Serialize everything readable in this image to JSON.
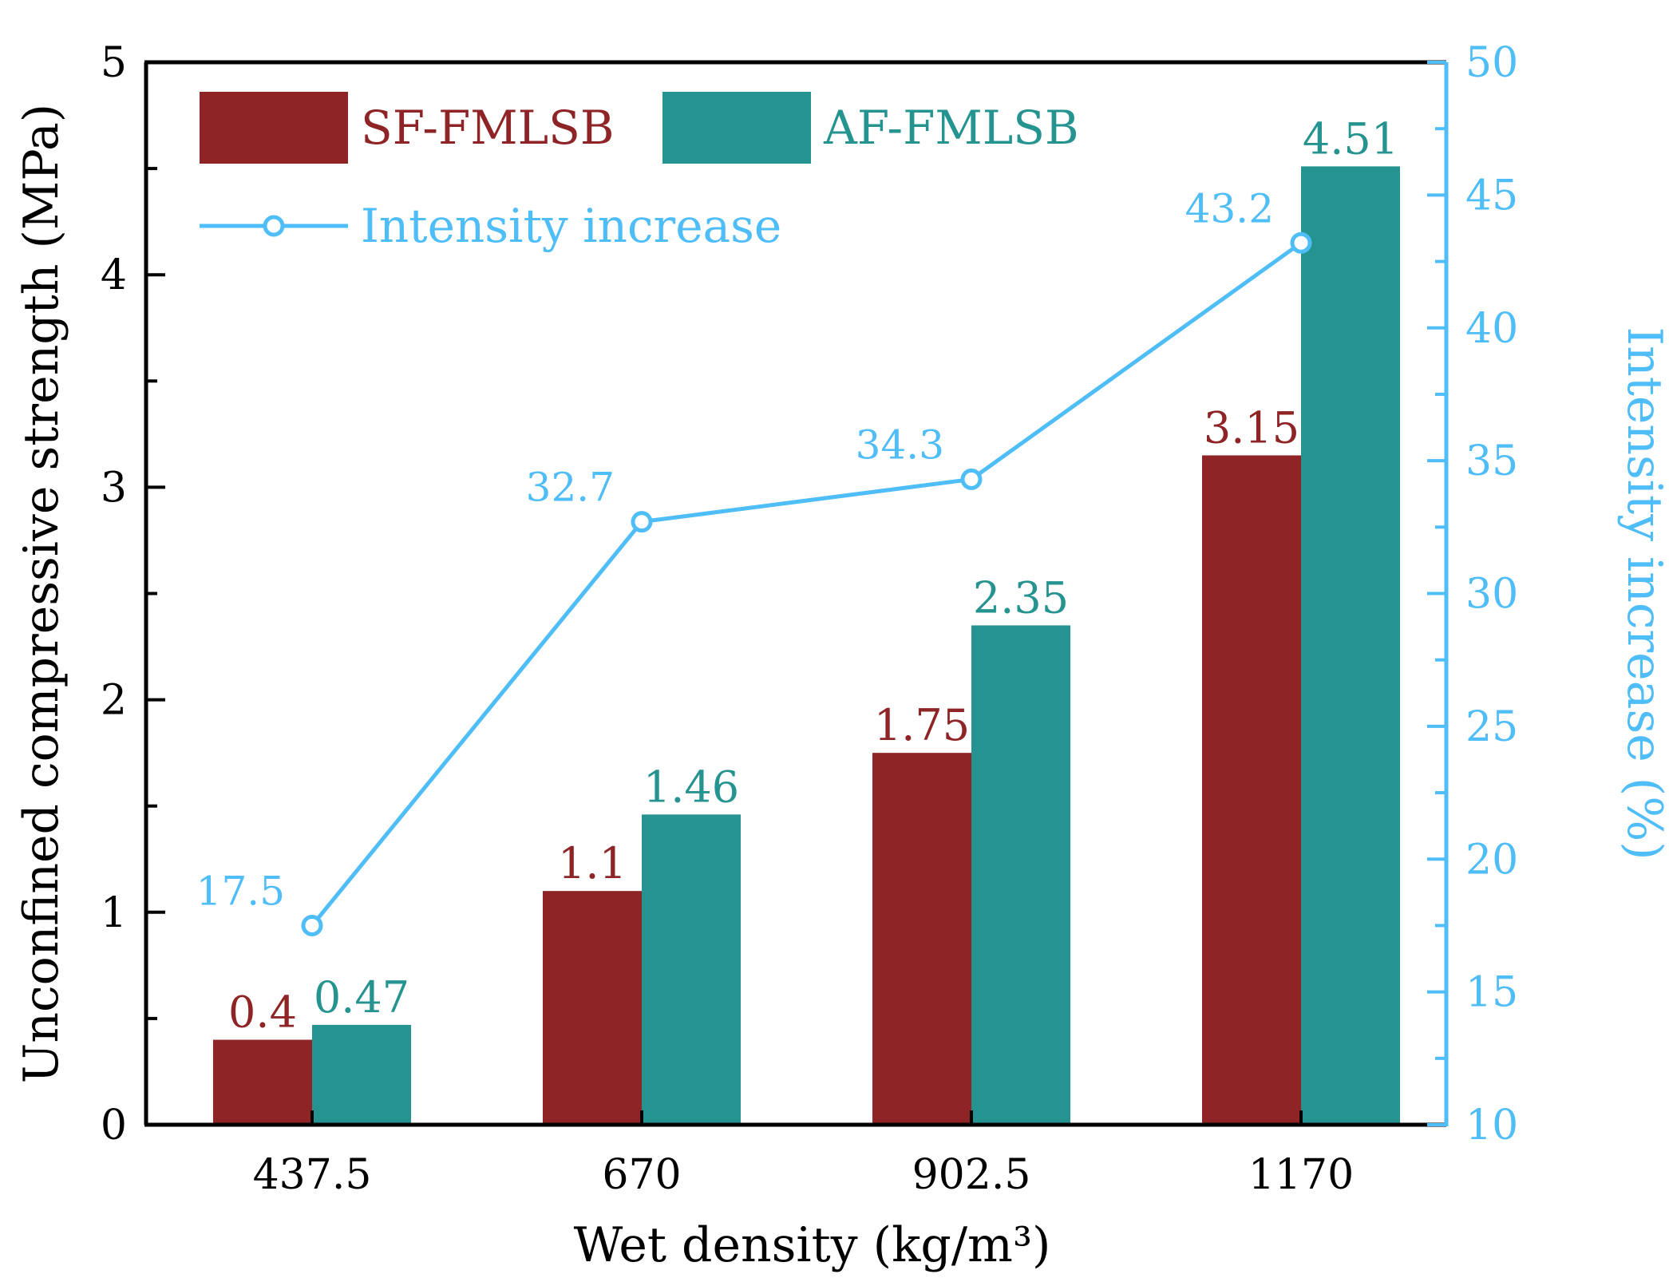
{
  "chart_data": {
    "type": "bar",
    "categories": [
      "437.5",
      "670",
      "902.5",
      "1170"
    ],
    "xlabel": "Wet density (kg/m³)",
    "ylabel": "Unconfined compressive strength (MPa)",
    "ylim": [
      0,
      5
    ],
    "yticks": [
      "0",
      "1",
      "2",
      "3",
      "4",
      "5"
    ],
    "series": [
      {
        "name": "SF-FMLSB",
        "values": [
          0.4,
          1.1,
          1.75,
          3.15
        ],
        "labels": [
          "0.4",
          "1.1",
          "1.75",
          "3.15"
        ],
        "color": "#8f2426"
      },
      {
        "name": "AF-FMLSB",
        "values": [
          0.47,
          1.46,
          2.35,
          4.51
        ],
        "labels": [
          "0.47",
          "1.46",
          "2.35",
          "4.51"
        ],
        "color": "#259490"
      }
    ],
    "secondary_axis": {
      "ylabel": "Intensity increase (%)",
      "ylim": [
        10,
        50
      ],
      "yticks": [
        "10",
        "15",
        "20",
        "25",
        "30",
        "35",
        "40",
        "45",
        "50"
      ],
      "color": "#4fbdf7"
    },
    "line_series": {
      "name": "Intensity increase",
      "type": "line",
      "axis": "secondary",
      "values": [
        17.5,
        32.7,
        34.3,
        43.2
      ],
      "labels": [
        "17.5",
        "32.7",
        "34.3",
        "43.2"
      ],
      "color": "#4fbdf7"
    },
    "legend_position": "top-left",
    "grid": false
  }
}
